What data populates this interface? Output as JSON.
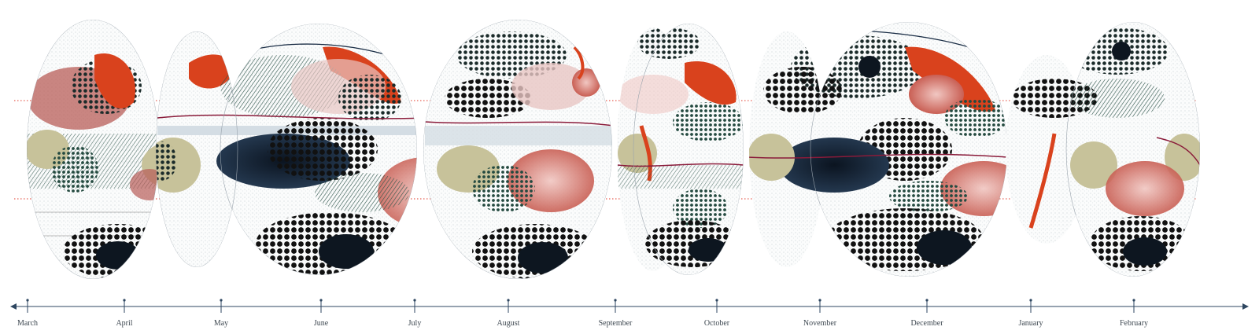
{
  "timeline": {
    "months": [
      "March",
      "April",
      "May",
      "June",
      "July",
      "August",
      "September",
      "October",
      "November",
      "December",
      "January",
      "February"
    ],
    "axis_color": "#2d4660"
  },
  "globes": [
    {
      "month": "March"
    },
    {
      "month": "April–June"
    },
    {
      "month": "July–August"
    },
    {
      "month": "September–October"
    },
    {
      "month": "November–December"
    },
    {
      "month": "January–February"
    }
  ],
  "colors": {
    "dark_teal": "#1f3b35",
    "navy": "#1a2d45",
    "black_dots": "#111111",
    "red_orange": "#d9421d",
    "pink": "#e6a5a0",
    "olive": "#c7c29a",
    "light_gray": "#cfd6dc",
    "dotted_line": "#e03a2a"
  },
  "icons": [
    "arrow-left-icon",
    "arrow-right-icon",
    "globe-icon"
  ]
}
